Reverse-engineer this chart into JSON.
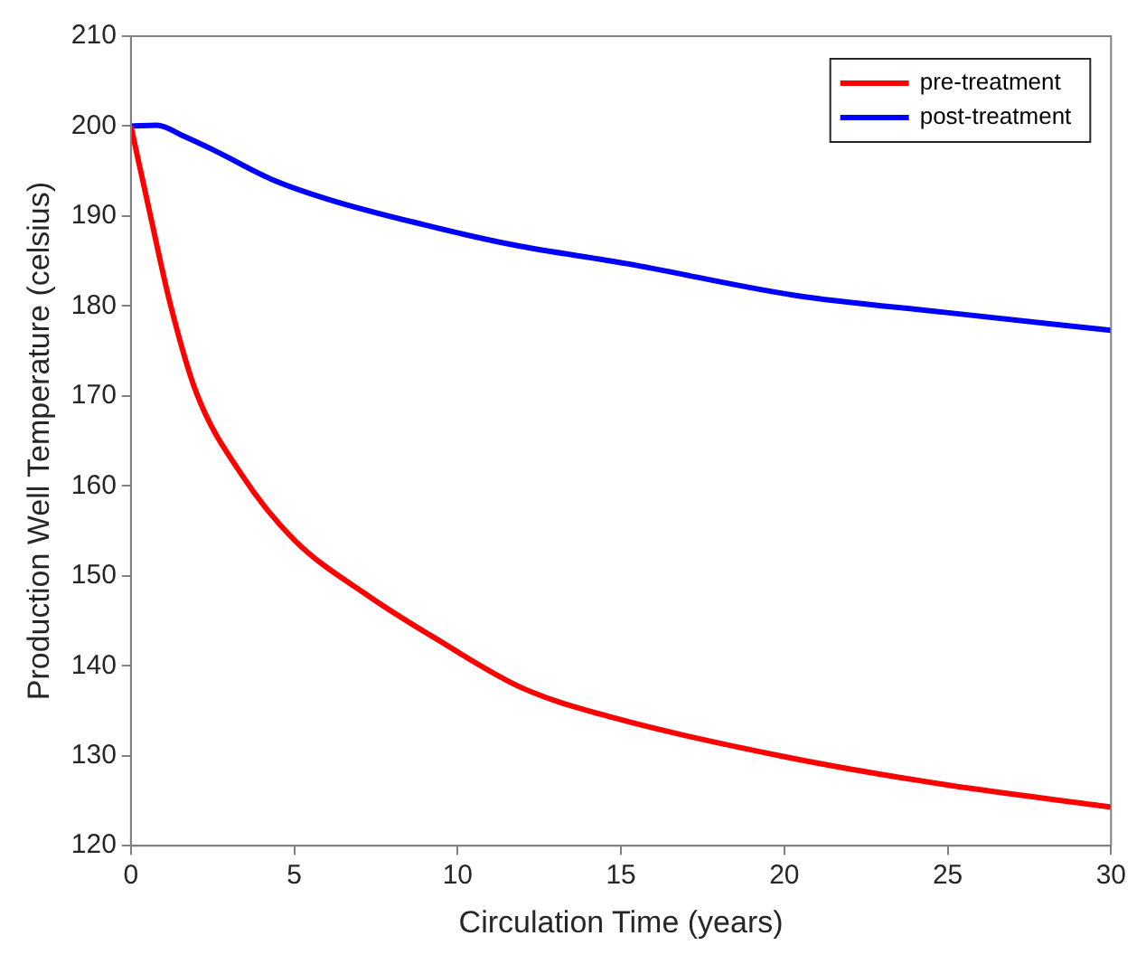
{
  "chart_data": {
    "type": "line",
    "xlabel": "Circulation Time (years)",
    "ylabel": "Production Well Temperature (celsius)",
    "xlim": [
      0,
      30
    ],
    "xticks": [
      0,
      5,
      10,
      15,
      20,
      25,
      30
    ],
    "ylim": [
      120,
      210
    ],
    "yticks": [
      120,
      130,
      140,
      150,
      160,
      170,
      180,
      190,
      200,
      210
    ],
    "grid": false,
    "legend": "top right",
    "marker": "none",
    "line_style": "solid",
    "series": [
      {
        "name": "pre-treatment",
        "color": "#ff0000",
        "x": [
          0,
          0.6,
          1.2,
          2,
          3.4,
          5,
          7.3,
          9.3,
          12,
          14.8,
          20,
          24.9,
          30
        ],
        "values": [
          200,
          190,
          180.3,
          170.4,
          161.2,
          154,
          147.7,
          143.1,
          137.5,
          134.2,
          129.9,
          126.8,
          124.3
        ]
      },
      {
        "name": "post-treatment",
        "color": "#0000ff",
        "x": [
          0,
          0.8,
          1.55,
          2.5,
          4.3,
          6.1,
          8.9,
          11.7,
          15.2,
          20.3,
          24.9,
          30
        ],
        "values": [
          200,
          200.1,
          199,
          197.4,
          194.1,
          191.8,
          189.1,
          186.8,
          184.7,
          181.2,
          179.3,
          177.3
        ]
      }
    ]
  }
}
